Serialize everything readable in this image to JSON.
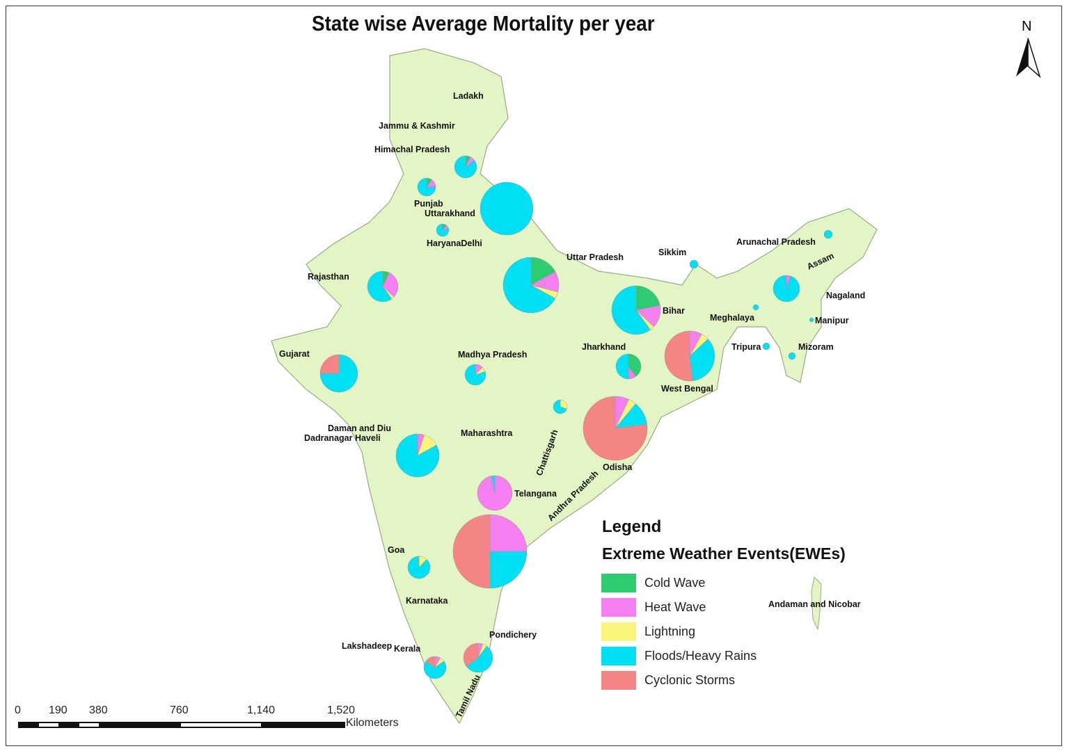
{
  "title": "State wise Average Mortality per year",
  "north_arrow": "N",
  "legend": {
    "heading": "Legend",
    "subtitle": "Extreme Weather Events(EWEs)",
    "items": [
      {
        "label": "Cold Wave",
        "color": "#2ecc71"
      },
      {
        "label": "Heat Wave",
        "color": "#f57ff0"
      },
      {
        "label": "Lightning",
        "color": "#f8f57a"
      },
      {
        "label": "Floods/Heavy Rains",
        "color": "#00e0f5"
      },
      {
        "label": "Cyclonic Storms",
        "color": "#f58484"
      }
    ]
  },
  "scale_bar": {
    "ticks": [
      "0",
      "190",
      "380",
      "760",
      "1,140",
      "1,520"
    ],
    "unit": "Kilometers"
  },
  "map_fill": "#e3f5c4",
  "state_labels": [
    "Ladakh",
    "Jammu & Kashmir",
    "Himachal Pradesh",
    "Punjab",
    "Uttarakhand",
    "HaryanaDelhi",
    "Uttar Pradesh",
    "Rajasthan",
    "Sikkim",
    "Arunachal Pradesh",
    "Assam",
    "Nagaland",
    "Bihar",
    "Meghalaya",
    "Manipur",
    "Jharkhand",
    "Tripura",
    "Mizoram",
    "West Bengal",
    "Gujarat",
    "Madhya Pradesh",
    "Daman and Diu",
    "Dadranagar Haveli",
    "Maharashtra",
    "Chattisgarh",
    "Odisha",
    "Telangana",
    "Andhra Pradesh",
    "Goa",
    "Karnataka",
    "Andaman and Nicobar",
    "Pondichery",
    "Lakshadeep",
    "Kerala",
    "Tamil Nadu"
  ],
  "pies": [
    {
      "state": "Himachal Pradesh",
      "fractions": [
        0.07,
        0.08,
        0,
        0.85,
        0
      ]
    },
    {
      "state": "Punjab",
      "fractions": [
        0.1,
        0.15,
        0,
        0.75,
        0
      ]
    },
    {
      "state": "Uttarakhand",
      "fractions": [
        0,
        0,
        0,
        1,
        0
      ]
    },
    {
      "state": "Haryana",
      "fractions": [
        0.1,
        0.1,
        0,
        0.8,
        0
      ]
    },
    {
      "state": "Uttar Pradesh",
      "fractions": [
        0.17,
        0.12,
        0.04,
        0.67,
        0
      ]
    },
    {
      "state": "Rajasthan",
      "fractions": [
        0.07,
        0.3,
        0.03,
        0.6,
        0
      ]
    },
    {
      "state": "Bihar",
      "fractions": [
        0.22,
        0.15,
        0.03,
        0.6,
        0
      ]
    },
    {
      "state": "West Bengal",
      "fractions": [
        0,
        0.08,
        0.05,
        0.35,
        0.52
      ]
    },
    {
      "state": "Jharkhand",
      "fractions": [
        0.4,
        0.1,
        0,
        0.5,
        0
      ]
    },
    {
      "state": "Gujarat",
      "fractions": [
        0,
        0,
        0,
        0.75,
        0.25
      ]
    },
    {
      "state": "Madhya Pradesh",
      "fractions": [
        0,
        0.12,
        0.08,
        0.8,
        0
      ]
    },
    {
      "state": "Chattisgarh",
      "fractions": [
        0,
        0,
        0.3,
        0.7,
        0
      ]
    },
    {
      "state": "Odisha",
      "fractions": [
        0,
        0.07,
        0.04,
        0.12,
        0.77
      ]
    },
    {
      "state": "Maharashtra",
      "fractions": [
        0,
        0.05,
        0.12,
        0.83,
        0
      ]
    },
    {
      "state": "Telangana",
      "fractions": [
        0,
        0.97,
        0,
        0.03,
        0
      ]
    },
    {
      "state": "Andhra Pradesh",
      "fractions": [
        0,
        0.25,
        0,
        0.25,
        0.5
      ]
    },
    {
      "state": "Karnataka",
      "fractions": [
        0,
        0,
        0.12,
        0.88,
        0
      ]
    },
    {
      "state": "Tamil Nadu",
      "fractions": [
        0,
        0.05,
        0.05,
        0.55,
        0.35
      ]
    },
    {
      "state": "Kerala",
      "fractions": [
        0,
        0.08,
        0.07,
        0.7,
        0.15
      ]
    },
    {
      "state": "Sikkim",
      "fractions": [
        0,
        0,
        0,
        1,
        0
      ]
    },
    {
      "state": "Arunachal Pradesh",
      "fractions": [
        0,
        0,
        0,
        1,
        0
      ]
    },
    {
      "state": "Assam",
      "fractions": [
        0,
        0.05,
        0,
        0.95,
        0
      ]
    },
    {
      "state": "Meghalaya",
      "fractions": [
        0,
        0,
        0,
        1,
        0
      ]
    },
    {
      "state": "Manipur",
      "fractions": [
        0,
        0,
        0,
        1,
        0
      ]
    },
    {
      "state": "Tripura",
      "fractions": [
        0,
        0,
        0,
        1,
        0
      ]
    },
    {
      "state": "Mizoram",
      "fractions": [
        0,
        0,
        0,
        1,
        0
      ]
    }
  ]
}
